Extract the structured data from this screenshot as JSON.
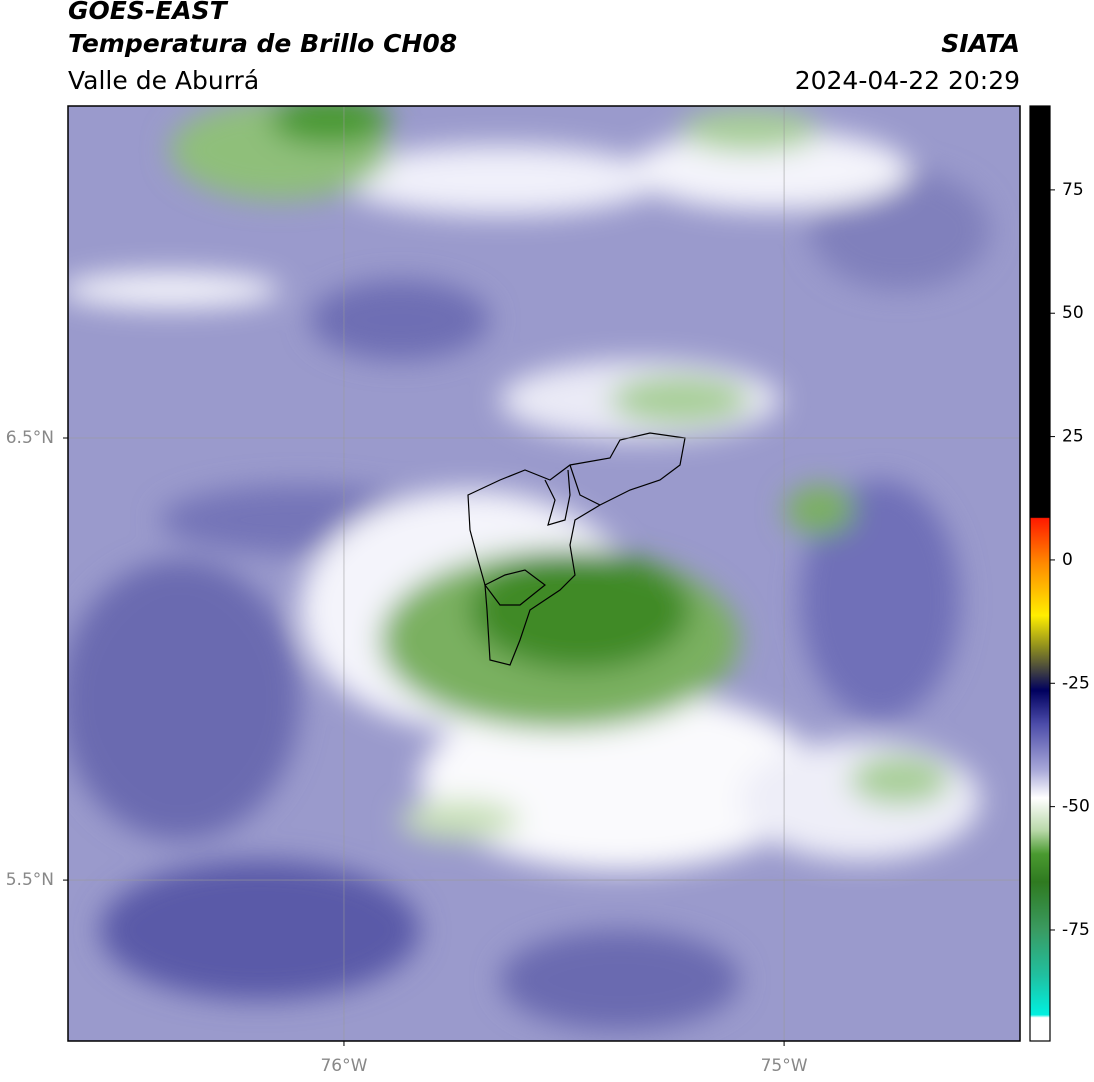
{
  "header": {
    "title": "GOES-EAST",
    "subtitle": "Temperatura de Brillo CH08",
    "region": "Valle de Aburrá",
    "source": "SIATA",
    "timestamp": "2024-04-22 20:29"
  },
  "map": {
    "xlim": [
      -76.627,
      -74.464
    ],
    "ylim": [
      5.136,
      7.251
    ],
    "xticks": [
      {
        "value": -76,
        "label": "76°W"
      },
      {
        "value": -75,
        "label": "75°W"
      }
    ],
    "yticks": [
      {
        "value": 6.5,
        "label": "6.5°N"
      },
      {
        "value": 5.5,
        "label": "5.5°N"
      }
    ],
    "grid": true
  },
  "colorbar": {
    "lim": [
      -97.5,
      92
    ],
    "ticks": [
      75,
      50,
      25,
      0,
      -25,
      -50,
      -75
    ]
  }
}
